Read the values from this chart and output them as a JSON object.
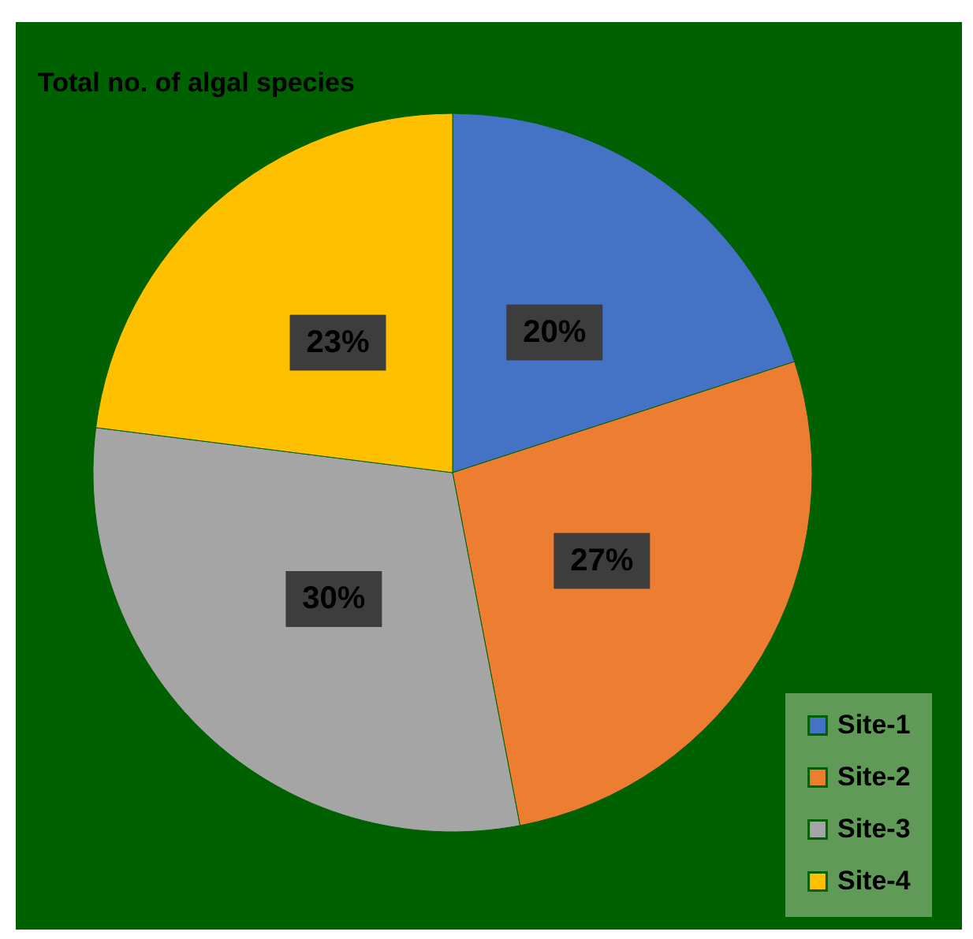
{
  "chart_data": {
    "type": "pie",
    "title": "Total no. of algal species",
    "categories": [
      "Site-1",
      "Site-2",
      "Site-3",
      "Site-4"
    ],
    "values": [
      20,
      27,
      30,
      23
    ],
    "colors": [
      "#4472c4",
      "#ed7d31",
      "#a5a5a5",
      "#ffc000"
    ],
    "value_labels": [
      "20%",
      "27%",
      "30%",
      "23%"
    ],
    "legend": "bottom right"
  }
}
